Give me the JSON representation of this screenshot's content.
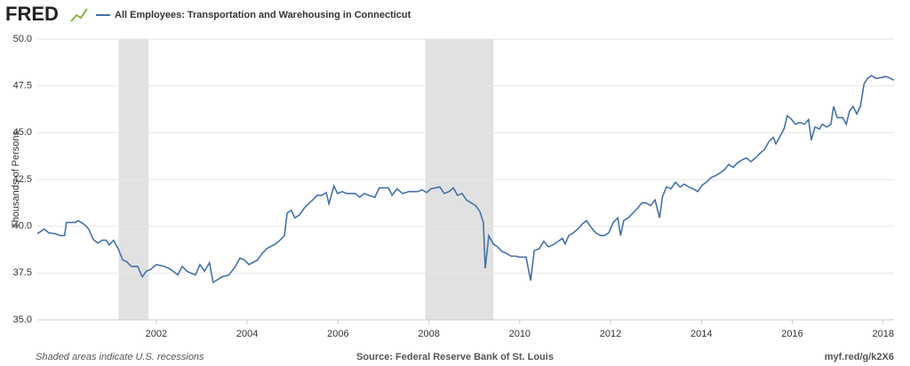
{
  "logo": "FRED",
  "chart_data": {
    "type": "line",
    "title": "All Employees: Transportation and Warehousing in Connecticut",
    "y_label": "Thousands of Persons",
    "note": "Shaded areas indicate U.S. recessions",
    "source": "Source: Federal Reserve Bank of St. Louis",
    "link": "myf.red/g/k2X6",
    "grid": true,
    "recessions": [
      [
        2001.17,
        2001.83
      ],
      [
        2007.92,
        2009.42
      ]
    ],
    "recession_color": "#e1e1e1",
    "xlim": [
      1999.38,
      2018.24
    ],
    "xticks": [
      2002,
      2004,
      2006,
      2008,
      2010,
      2012,
      2014,
      2016,
      2018
    ],
    "ylim": [
      35,
      50
    ],
    "yticks": [
      {
        "value": 35,
        "label": "35.0"
      },
      {
        "value": 37.5,
        "label": "37.5"
      },
      {
        "value": 40,
        "label": "40.0"
      },
      {
        "value": 42.5,
        "label": "42.5"
      },
      {
        "value": 45,
        "label": "45.0"
      },
      {
        "value": 47.5,
        "label": "47.5"
      },
      {
        "value": 50,
        "label": "50.0"
      }
    ],
    "x": [
      1999.38,
      1999.53,
      1999.63,
      1999.77,
      1999.89,
      1999.98,
      2000.02,
      2000.22,
      2000.28,
      2000.41,
      2000.51,
      2000.61,
      2000.71,
      2000.81,
      2000.9,
      2000.96,
      2001.06,
      2001.16,
      2001.26,
      2001.35,
      2001.45,
      2001.59,
      2001.69,
      2001.78,
      2001.88,
      2002.0,
      2002.18,
      2002.27,
      2002.37,
      2002.47,
      2002.57,
      2002.67,
      2002.76,
      2002.86,
      2002.96,
      2003.06,
      2003.17,
      2003.25,
      2003.35,
      2003.45,
      2003.6,
      2003.74,
      2003.84,
      2003.94,
      2004.04,
      2004.23,
      2004.33,
      2004.43,
      2004.62,
      2004.72,
      2004.82,
      2004.88,
      2004.97,
      2005.05,
      2005.15,
      2005.25,
      2005.37,
      2005.44,
      2005.54,
      2005.64,
      2005.74,
      2005.8,
      2005.91,
      2005.99,
      2006.09,
      2006.19,
      2006.38,
      2006.48,
      2006.58,
      2006.68,
      2006.81,
      2006.91,
      2007.11,
      2007.19,
      2007.3,
      2007.42,
      2007.56,
      2007.75,
      2007.85,
      2007.95,
      2008.05,
      2008.24,
      2008.34,
      2008.44,
      2008.54,
      2008.63,
      2008.73,
      2008.83,
      2008.93,
      2009.03,
      2009.12,
      2009.2,
      2009.24,
      2009.32,
      2009.42,
      2009.51,
      2009.61,
      2009.71,
      2009.81,
      2009.91,
      2010.0,
      2010.14,
      2010.24,
      2010.32,
      2010.43,
      2010.53,
      2010.63,
      2010.73,
      2010.85,
      2010.94,
      2011.0,
      2011.08,
      2011.18,
      2011.28,
      2011.37,
      2011.47,
      2011.57,
      2011.67,
      2011.78,
      2011.86,
      2011.96,
      2012.06,
      2012.16,
      2012.22,
      2012.29,
      2012.39,
      2012.49,
      2012.59,
      2012.69,
      2012.78,
      2012.88,
      2012.98,
      2013.08,
      2013.14,
      2013.23,
      2013.33,
      2013.43,
      2013.53,
      2013.62,
      2013.72,
      2013.82,
      2013.92,
      2014.02,
      2014.11,
      2014.21,
      2014.31,
      2014.41,
      2014.5,
      2014.6,
      2014.7,
      2014.8,
      2014.9,
      2014.99,
      2015.09,
      2015.19,
      2015.29,
      2015.39,
      2015.48,
      2015.58,
      2015.64,
      2015.72,
      2015.82,
      2015.89,
      2015.97,
      2016.07,
      2016.17,
      2016.27,
      2016.36,
      2016.42,
      2016.5,
      2016.6,
      2016.66,
      2016.76,
      2016.85,
      2016.91,
      2016.99,
      2017.11,
      2017.19,
      2017.26,
      2017.34,
      2017.42,
      2017.5,
      2017.58,
      2017.66,
      2017.74,
      2017.85,
      2017.97,
      2018.07,
      2018.16,
      2018.24
    ],
    "series": [
      {
        "name": "All Employees: Transportation and Warehousing in Connecticut",
        "color": "#4572a7",
        "values": [
          39.6,
          39.85,
          39.65,
          39.6,
          39.5,
          39.5,
          40.2,
          40.2,
          40.3,
          40.1,
          39.85,
          39.3,
          39.1,
          39.25,
          39.25,
          39.0,
          39.25,
          38.8,
          38.2,
          38.1,
          37.85,
          37.85,
          37.3,
          37.6,
          37.7,
          37.95,
          37.85,
          37.75,
          37.6,
          37.4,
          37.85,
          37.6,
          37.5,
          37.4,
          37.95,
          37.6,
          38.05,
          37.0,
          37.15,
          37.3,
          37.4,
          37.85,
          38.3,
          38.2,
          37.95,
          38.2,
          38.55,
          38.8,
          39.05,
          39.25,
          39.5,
          40.7,
          40.85,
          40.45,
          40.6,
          40.95,
          41.25,
          41.4,
          41.65,
          41.65,
          41.8,
          41.2,
          42.15,
          41.75,
          41.85,
          41.75,
          41.75,
          41.55,
          41.75,
          41.65,
          41.55,
          42.05,
          42.05,
          41.65,
          42.0,
          41.75,
          41.85,
          41.85,
          41.95,
          41.8,
          42.0,
          42.1,
          41.75,
          41.85,
          42.05,
          41.65,
          41.75,
          41.4,
          41.25,
          41.1,
          40.8,
          40.2,
          37.75,
          39.5,
          39.05,
          38.9,
          38.65,
          38.55,
          38.4,
          38.4,
          38.35,
          38.35,
          37.1,
          38.7,
          38.8,
          39.2,
          38.9,
          39.0,
          39.2,
          39.35,
          39.05,
          39.5,
          39.65,
          39.85,
          40.1,
          40.3,
          39.95,
          39.65,
          39.5,
          39.5,
          39.65,
          40.2,
          40.45,
          39.5,
          40.3,
          40.45,
          40.7,
          40.95,
          41.25,
          41.25,
          41.1,
          41.4,
          40.45,
          41.55,
          42.1,
          42.0,
          42.35,
          42.1,
          42.25,
          42.1,
          42.0,
          41.85,
          42.2,
          42.35,
          42.6,
          42.7,
          42.85,
          43.0,
          43.3,
          43.15,
          43.4,
          43.55,
          43.65,
          43.45,
          43.65,
          43.9,
          44.1,
          44.5,
          44.75,
          44.4,
          44.75,
          45.2,
          45.9,
          45.75,
          45.45,
          45.55,
          45.45,
          45.7,
          44.6,
          45.3,
          45.2,
          45.45,
          45.3,
          45.45,
          46.4,
          45.8,
          45.8,
          45.45,
          46.15,
          46.4,
          46.0,
          46.4,
          47.6,
          47.9,
          48.05,
          47.9,
          47.95,
          48.0,
          47.9,
          47.8
        ]
      }
    ]
  }
}
